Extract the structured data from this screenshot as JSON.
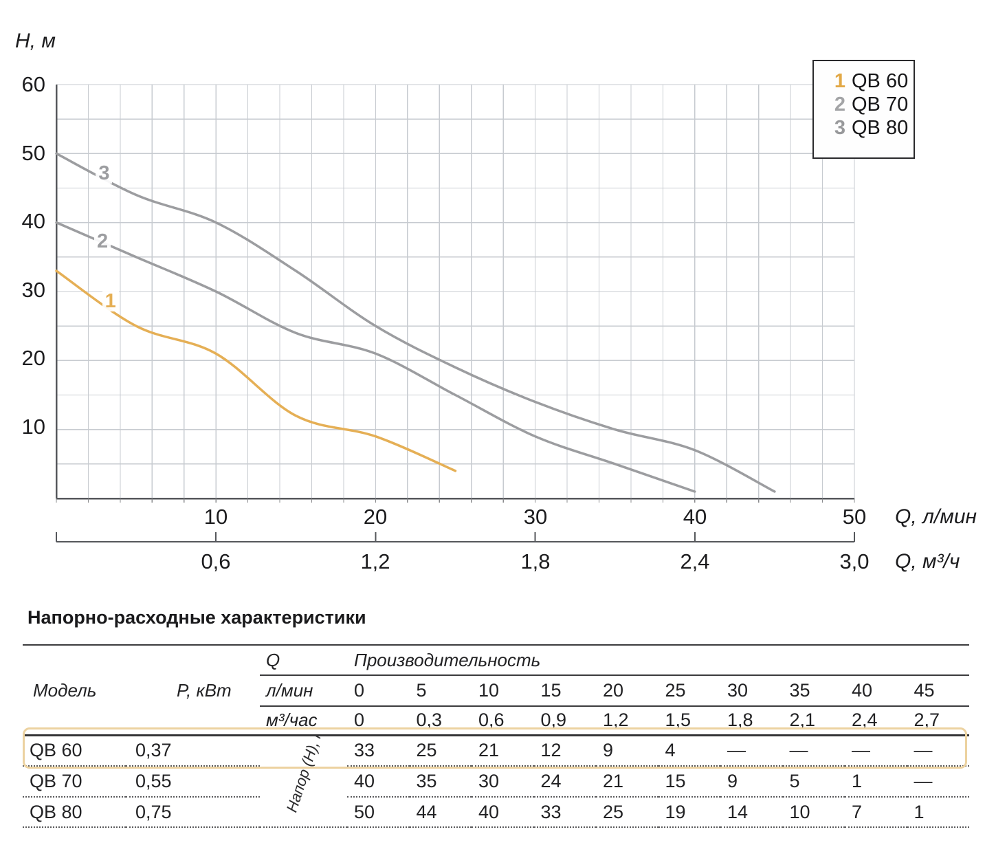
{
  "chart": {
    "y_axis_label": "H, м",
    "y_ticks": [
      "60",
      "50",
      "40",
      "30",
      "20",
      "10"
    ],
    "x_ticks_lmin": [
      "10",
      "20",
      "30",
      "40",
      "50"
    ],
    "x_unit_lmin": "Q, л/мин",
    "x_ticks_m3h": [
      "0,6",
      "1,2",
      "1,8",
      "2,4",
      "3,0"
    ],
    "x_unit_m3h": "Q, м³/ч",
    "legend": [
      {
        "num": "1",
        "label": "QB 60",
        "color": "#E2A845"
      },
      {
        "num": "2",
        "label": "QB 70",
        "color": "#A3A4A6"
      },
      {
        "num": "3",
        "label": "QB 80",
        "color": "#98999B"
      }
    ]
  },
  "chart_data": {
    "type": "line",
    "title": "",
    "xlabel": "Q, л/мин",
    "x2label": "Q, м³/ч",
    "ylabel": "H, м",
    "xlim": [
      0,
      50
    ],
    "ylim": [
      0,
      60
    ],
    "x_major_step": 10,
    "x_minor_step": 2,
    "y_minor_step": 5,
    "grid": true,
    "legend_position": "top-right",
    "grid_color": "#c7cbd0",
    "axis_color": "#55575b",
    "series": [
      {
        "num": "1",
        "name": "QB 60",
        "color": "#E5AF55",
        "points": [
          [
            0,
            33
          ],
          [
            5,
            25
          ],
          [
            10,
            21
          ],
          [
            15,
            12
          ],
          [
            20,
            9
          ],
          [
            25,
            4
          ]
        ],
        "label_pos": [
          3.3,
          28.5
        ]
      },
      {
        "num": "2",
        "name": "QB 70",
        "color": "#9C9DA0",
        "points": [
          [
            0,
            40
          ],
          [
            5,
            35
          ],
          [
            10,
            30
          ],
          [
            15,
            24
          ],
          [
            20,
            21
          ],
          [
            25,
            15
          ],
          [
            30,
            9
          ],
          [
            35,
            5
          ],
          [
            40,
            1
          ]
        ],
        "label_pos": [
          2.8,
          37.2
        ]
      },
      {
        "num": "3",
        "name": "QB 80",
        "color": "#9C9DA0",
        "points": [
          [
            0,
            50
          ],
          [
            5,
            44
          ],
          [
            10,
            40
          ],
          [
            15,
            33
          ],
          [
            20,
            25
          ],
          [
            25,
            19
          ],
          [
            30,
            14
          ],
          [
            35,
            10
          ],
          [
            40,
            7
          ],
          [
            45,
            1
          ]
        ],
        "label_pos": [
          2.9,
          47.0
        ]
      }
    ]
  },
  "table": {
    "title": "Напорно-расходные характеристики",
    "col_model": "Модель",
    "col_power": "P, кВт",
    "col_q": "Q",
    "col_capacity": "Производительность",
    "unit_lmin": "л/мин",
    "unit_m3h": "м³/час",
    "head_label": "Напор (H), м",
    "flow_lmin": [
      "0",
      "5",
      "10",
      "15",
      "20",
      "25",
      "30",
      "35",
      "40",
      "45"
    ],
    "flow_m3h": [
      "0",
      "0,3",
      "0,6",
      "0,9",
      "1,2",
      "1,5",
      "1,8",
      "2,1",
      "2,4",
      "2,7"
    ],
    "rows": [
      {
        "model": "QB 60",
        "power": "0,37",
        "highlighted": true,
        "heads": [
          "33",
          "25",
          "21",
          "12",
          "9",
          "4",
          "—",
          "—",
          "—",
          "—"
        ]
      },
      {
        "model": "QB 70",
        "power": "0,55",
        "highlighted": false,
        "heads": [
          "40",
          "35",
          "30",
          "24",
          "21",
          "15",
          "9",
          "5",
          "1",
          "—"
        ]
      },
      {
        "model": "QB 80",
        "power": "0,75",
        "highlighted": false,
        "heads": [
          "50",
          "44",
          "40",
          "33",
          "25",
          "19",
          "14",
          "10",
          "7",
          "1"
        ]
      }
    ],
    "highlight_color": "#ECD2A0"
  }
}
